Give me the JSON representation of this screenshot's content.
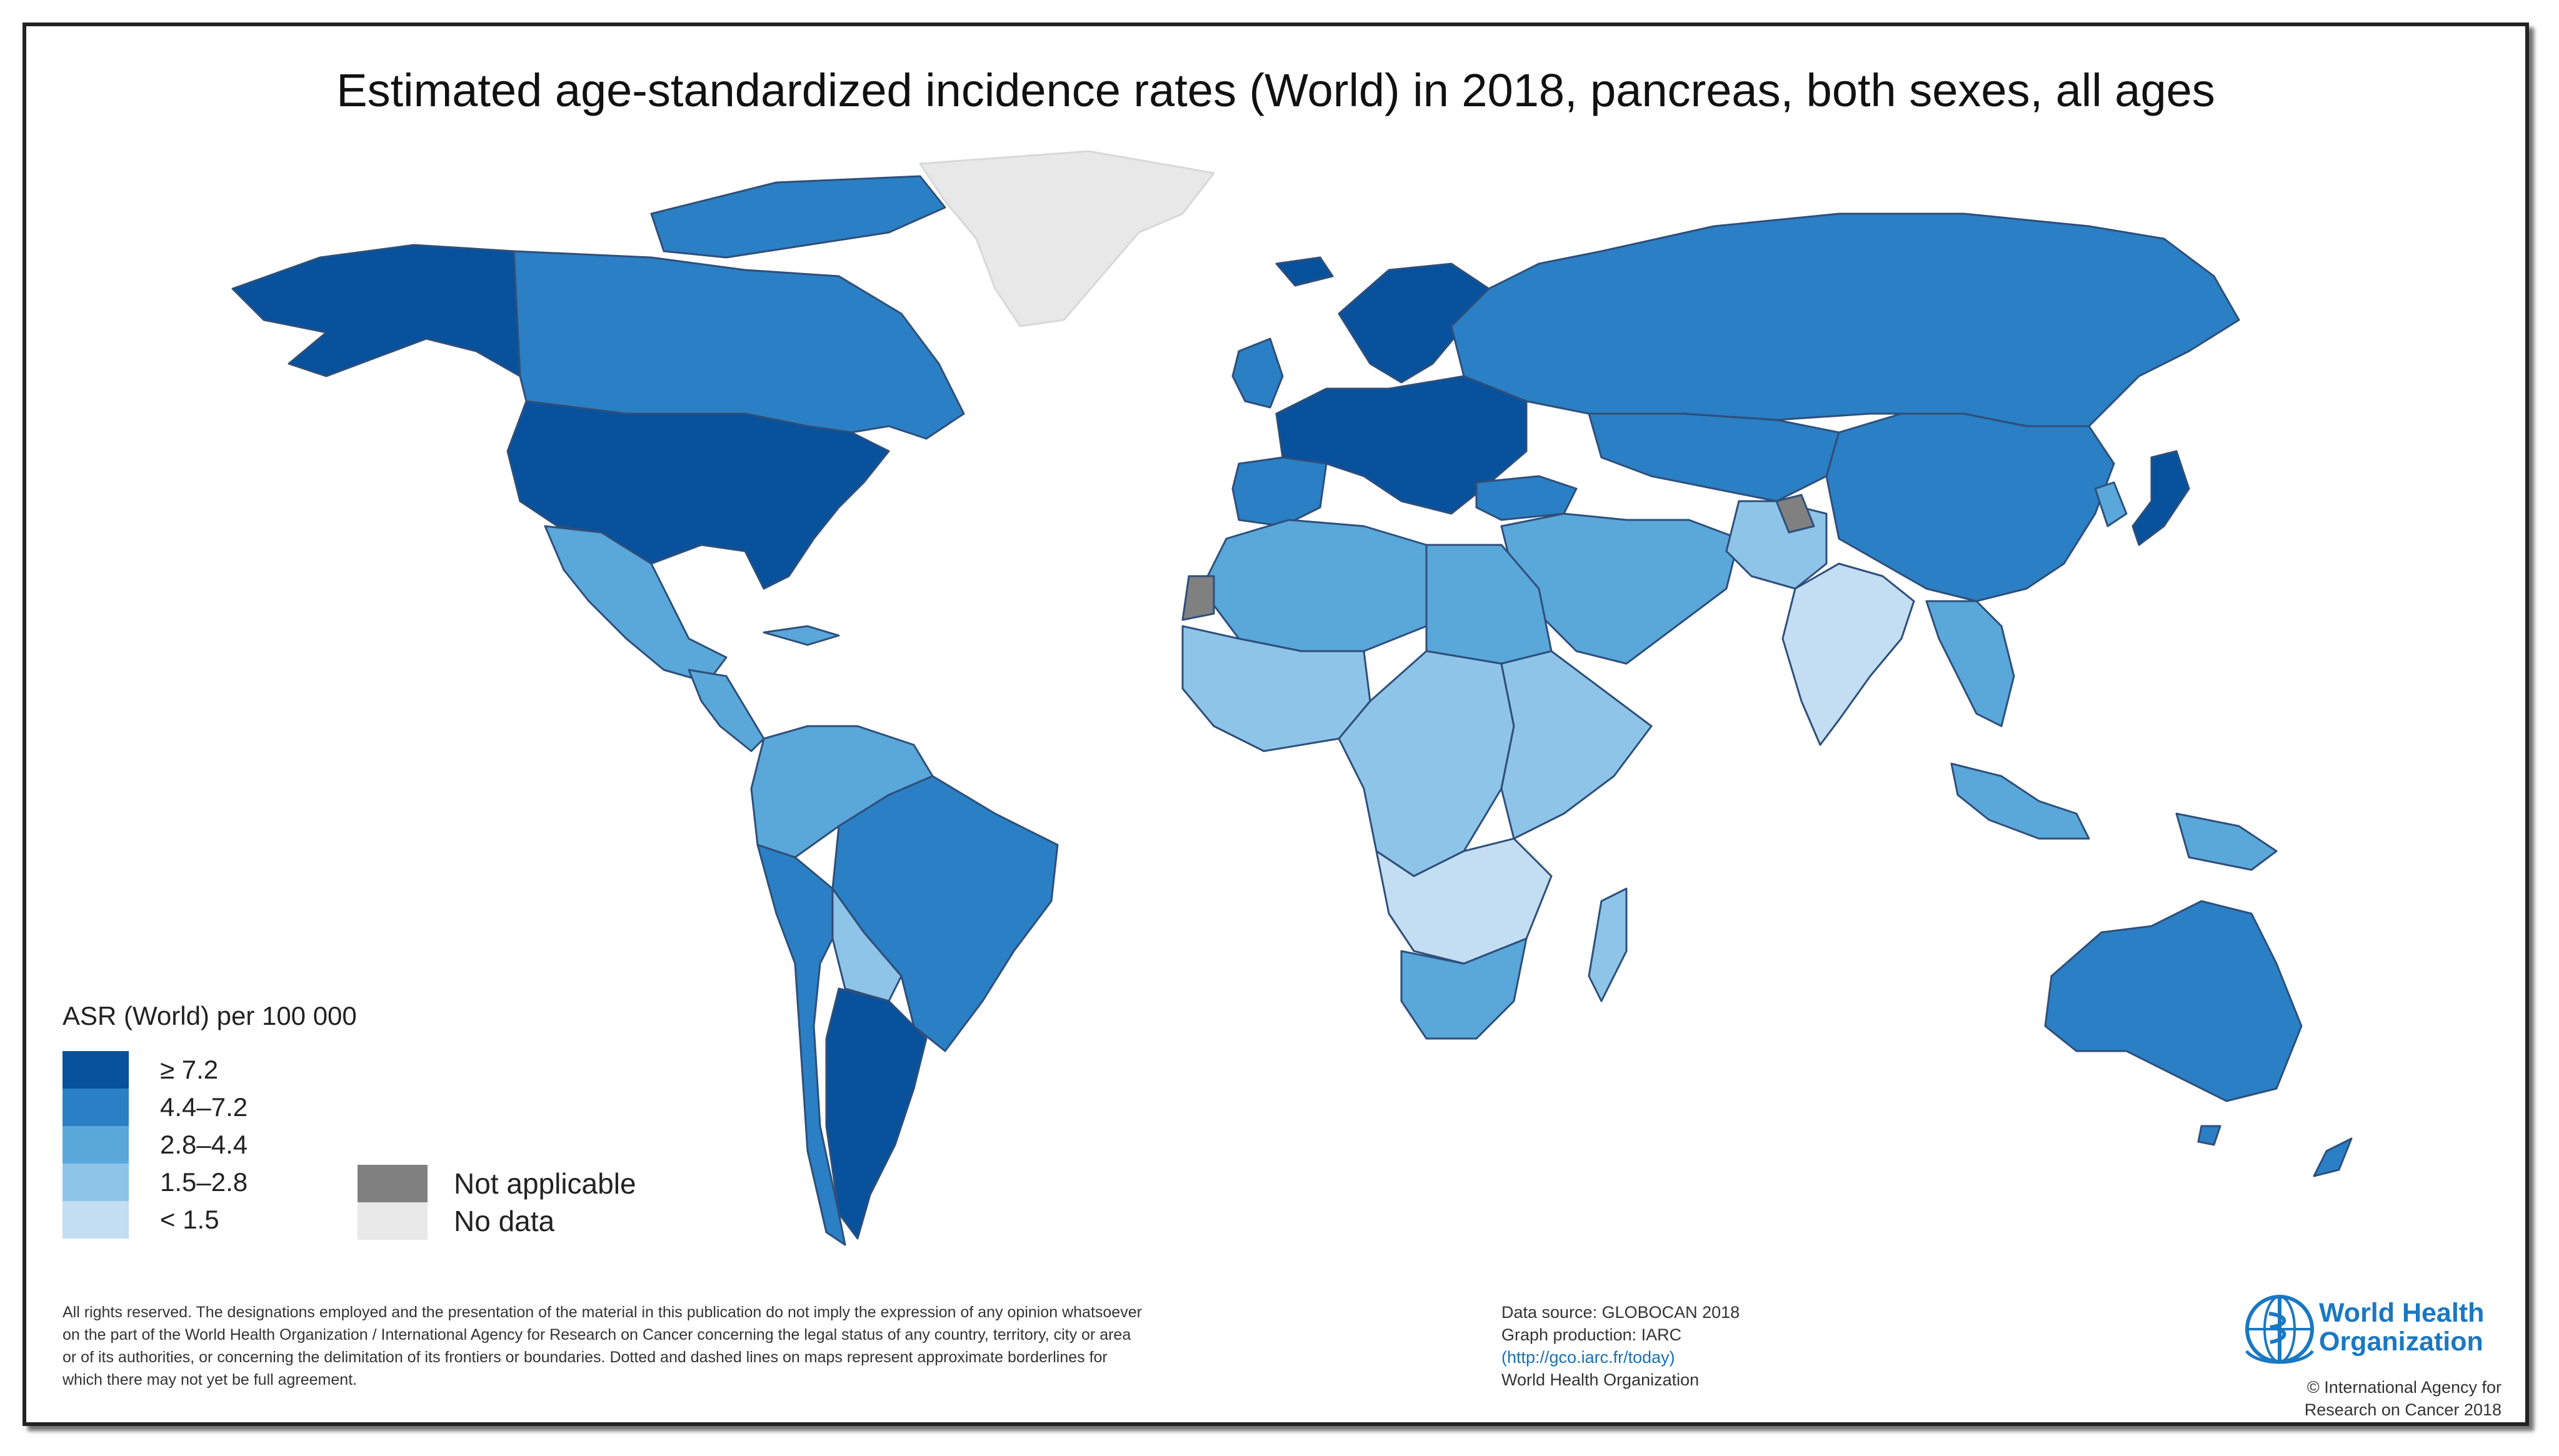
{
  "title": "Estimated age-standardized incidence rates (World) in 2018, pancreas, both sexes, all ages",
  "legend": {
    "title": "ASR (World) per 100 000",
    "classes": [
      {
        "label": "≥ 7.2",
        "color": "#08519c"
      },
      {
        "label": "4.4–7.2",
        "color": "#2b7fc4"
      },
      {
        "label": "2.8–4.4",
        "color": "#5aa7da"
      },
      {
        "label": "1.5–2.8",
        "color": "#8ec4e8"
      },
      {
        "label": "< 1.5",
        "color": "#c3ddf2"
      }
    ],
    "other": [
      {
        "label": "Not applicable",
        "color": "#808080"
      },
      {
        "label": "No data",
        "color": "#e8e8e8"
      }
    ]
  },
  "regions": {
    "greenland": "No data",
    "alaska": "≥ 7.2",
    "canada": "4.4–7.2",
    "usa": "≥ 7.2",
    "mexico": "2.8–4.4",
    "central_america": "2.8–4.4",
    "caribbean": "2.8–4.4",
    "south_america_north": "2.8–4.4",
    "brazil": "4.4–7.2",
    "bolivia_paraguay": "1.5–2.8",
    "argentina": "≥ 7.2",
    "chile": "4.4–7.2",
    "western_europe": "≥ 7.2",
    "scandinavia": "≥ 7.2",
    "uk_ireland": "4.4–7.2",
    "iberia": "4.4–7.2",
    "russia": "4.4–7.2",
    "central_asia": "4.4–7.2",
    "china": "4.4–7.2",
    "japan": "≥ 7.2",
    "korea": "2.8–4.4",
    "middle_east": "2.8–4.4",
    "turkey": "4.4–7.2",
    "india": "< 1.5",
    "south_asia": "1.5–2.8",
    "southeast_asia": "2.8–4.4",
    "north_africa": "2.8–4.4",
    "egypt": "2.8–4.4",
    "west_africa": "1.5–2.8",
    "central_africa": "1.5–2.8",
    "east_africa": "1.5–2.8",
    "southern_africa_mid": "< 1.5",
    "south_africa": "2.8–4.4",
    "madagascar": "1.5–2.8",
    "indonesia": "2.8–4.4",
    "australia": "4.4–7.2",
    "new_zealand": "4.4–7.2",
    "western_sahara": "Not applicable",
    "kashmir": "Not applicable"
  },
  "disclaimer": [
    "All rights reserved. The designations employed and the presentation of the material in this publication do not imply the expression of any opinion whatsoever",
    "on the part of the World Health Organization / International Agency for Research on Cancer concerning the legal status of any country, territory, city or area",
    "or of its authorities, or concerning the delimitation of its frontiers or boundaries. Dotted and dashed lines on maps represent approximate borderlines for",
    "which there may not yet be full agreement."
  ],
  "source": {
    "data_source": "Data source: GLOBOCAN 2018",
    "graph_production": "Graph production: IARC",
    "link": "(http://gco.iarc.fr/today)",
    "org": "World Health Organization"
  },
  "who": {
    "name_line1": "World Health",
    "name_line2": "Organization",
    "copyright_line1": "© International Agency for",
    "copyright_line2": "Research on Cancer 2018"
  }
}
